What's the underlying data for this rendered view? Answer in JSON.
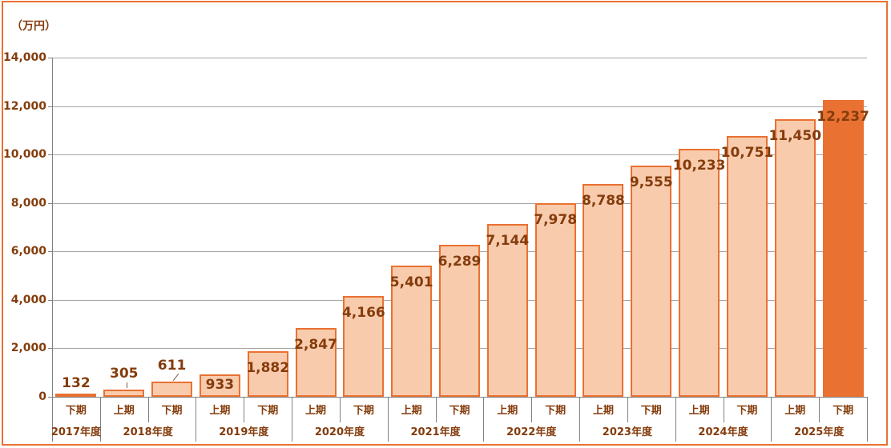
{
  "chart_data": {
    "type": "bar",
    "unit_label": "（万円）",
    "y_axis": {
      "min": 0,
      "max": 14000,
      "step": 2000,
      "tick_labels": [
        "0",
        "2,000",
        "4,000",
        "6,000",
        "8,000",
        "10,000",
        "12,000",
        "14,000"
      ]
    },
    "groups": [
      {
        "label": "2017年度",
        "periods": [
          "下期"
        ]
      },
      {
        "label": "2018年度",
        "periods": [
          "上期",
          "下期"
        ]
      },
      {
        "label": "2019年度",
        "periods": [
          "上期",
          "下期"
        ]
      },
      {
        "label": "2020年度",
        "periods": [
          "上期",
          "下期"
        ]
      },
      {
        "label": "2021年度",
        "periods": [
          "上期",
          "下期"
        ]
      },
      {
        "label": "2022年度",
        "periods": [
          "上期",
          "下期"
        ]
      },
      {
        "label": "2023年度",
        "periods": [
          "上期",
          "下期"
        ]
      },
      {
        "label": "2024年度",
        "periods": [
          "上期",
          "下期"
        ]
      },
      {
        "label": "2025年度",
        "periods": [
          "上期",
          "下期"
        ]
      }
    ],
    "points": [
      {
        "year": "2017年度",
        "period": "下期",
        "value": 132,
        "label": "132"
      },
      {
        "year": "2018年度",
        "period": "上期",
        "value": 305,
        "label": "305"
      },
      {
        "year": "2018年度",
        "period": "下期",
        "value": 611,
        "label": "611"
      },
      {
        "year": "2019年度",
        "period": "上期",
        "value": 933,
        "label": "933"
      },
      {
        "year": "2019年度",
        "period": "下期",
        "value": 1882,
        "label": "1,882"
      },
      {
        "year": "2020年度",
        "period": "上期",
        "value": 2847,
        "label": "2,847"
      },
      {
        "year": "2020年度",
        "period": "下期",
        "value": 4166,
        "label": "4,166"
      },
      {
        "year": "2021年度",
        "period": "上期",
        "value": 5401,
        "label": "5,401"
      },
      {
        "year": "2021年度",
        "period": "下期",
        "value": 6289,
        "label": "6,289"
      },
      {
        "year": "2022年度",
        "period": "上期",
        "value": 7144,
        "label": "7,144"
      },
      {
        "year": "2022年度",
        "period": "下期",
        "value": 7978,
        "label": "7,978"
      },
      {
        "year": "2023年度",
        "period": "上期",
        "value": 8788,
        "label": "8,788"
      },
      {
        "year": "2023年度",
        "period": "下期",
        "value": 9555,
        "label": "9,555"
      },
      {
        "year": "2024年度",
        "period": "上期",
        "value": 10233,
        "label": "10,233"
      },
      {
        "year": "2024年度",
        "period": "下期",
        "value": 10751,
        "label": "10,751"
      },
      {
        "year": "2025年度",
        "period": "上期",
        "value": 11450,
        "label": "11,450"
      },
      {
        "year": "2025年度",
        "period": "下期",
        "value": 12237,
        "label": "12,237"
      }
    ],
    "highlight_index": 16,
    "colors": {
      "bar_fill": "#F8CBAD",
      "bar_border": "#E97132",
      "highlight_fill": "#E97132",
      "label_text": "#843C0C",
      "gridline": "#A6A6A6",
      "axis_line": "#808080",
      "chart_border": "#E97132"
    },
    "legend": null,
    "grid": true
  }
}
